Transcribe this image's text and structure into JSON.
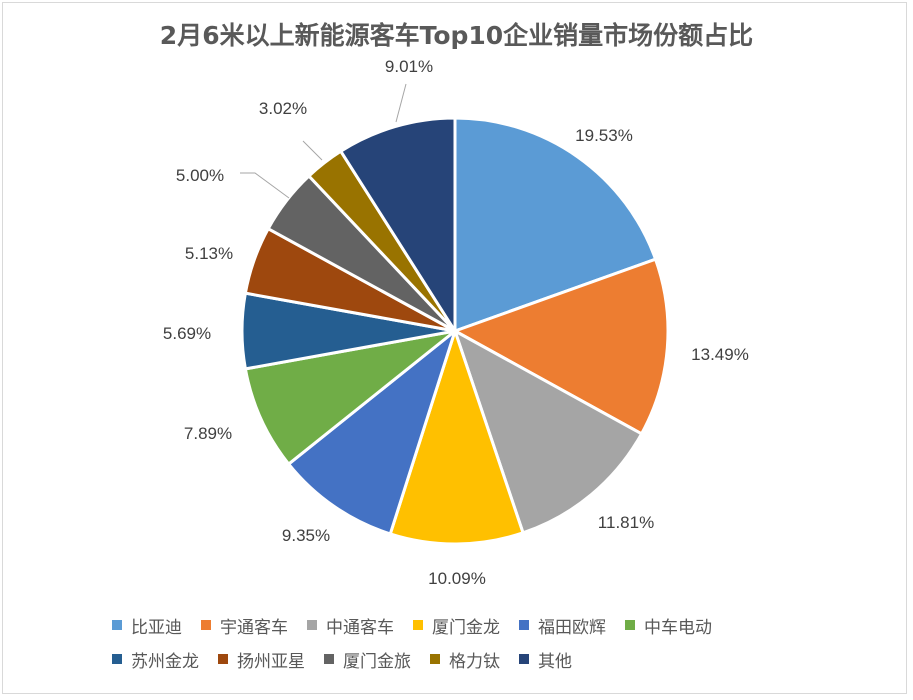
{
  "chart_data": {
    "type": "pie",
    "title": "2月6米以上新能源客车Top10企业销量市场份额占比",
    "slices": [
      {
        "name": "比亚迪",
        "value": 19.53,
        "label": "19.53%",
        "color": "#5B9BD5"
      },
      {
        "name": "宇通客车",
        "value": 13.49,
        "label": "13.49%",
        "color": "#ED7D31"
      },
      {
        "name": "中通客车",
        "value": 11.81,
        "label": "11.81%",
        "color": "#A5A5A5"
      },
      {
        "name": "厦门金龙",
        "value": 10.09,
        "label": "10.09%",
        "color": "#FFC000"
      },
      {
        "name": "福田欧辉",
        "value": 9.35,
        "label": "9.35%",
        "color": "#4472C4"
      },
      {
        "name": "中车电动",
        "value": 7.89,
        "label": "7.89%",
        "color": "#70AD47"
      },
      {
        "name": "苏州金龙",
        "value": 5.69,
        "label": "5.69%",
        "color": "#255E91"
      },
      {
        "name": "扬州亚星",
        "value": 5.13,
        "label": "5.13%",
        "color": "#9E480E"
      },
      {
        "name": "厦门金旅",
        "value": 5.0,
        "label": "5.00%",
        "color": "#636363"
      },
      {
        "name": "格力钛",
        "value": 3.02,
        "label": "3.02%",
        "color": "#997300"
      },
      {
        "name": "其他",
        "value": 9.01,
        "label": "9.01%",
        "color": "#264478"
      }
    ],
    "legend_position": "bottom"
  }
}
